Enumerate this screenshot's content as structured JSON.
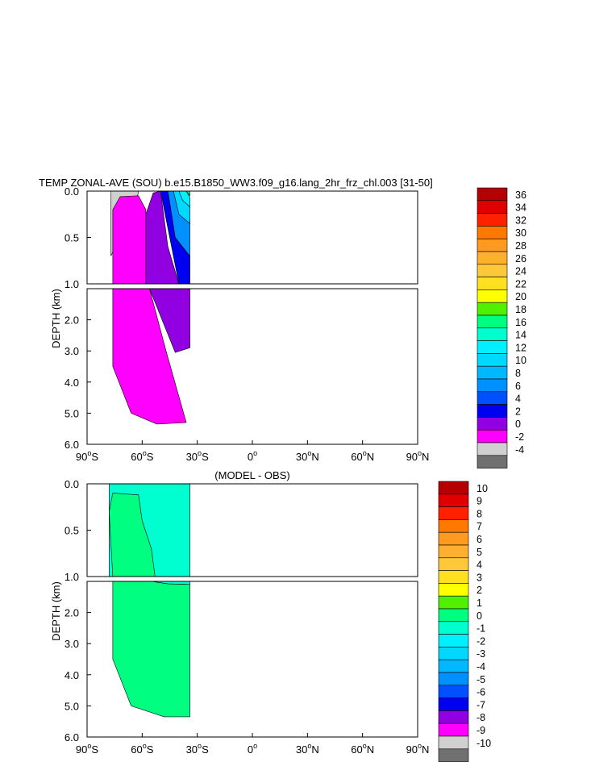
{
  "chart_data": [
    {
      "type": "filled-contour",
      "title": "TEMP ZONAL-AVE (SOU) b.e15.B1850_WW3.f09_g16.lang_2hr_frz_chl.003 [31-50]",
      "ylabel": "DEPTH (km)",
      "xlim": [
        -90,
        90
      ],
      "ylim_top_panel": [
        0.0,
        1.0
      ],
      "ylim_bottom_panel": [
        1.0,
        6.0
      ],
      "y_ticks_top": [
        "0.0",
        "0.5",
        "1.0"
      ],
      "y_ticks_bottom": [
        "2.0",
        "3.0",
        "4.0",
        "5.0",
        "6.0"
      ],
      "x_ticks": [
        {
          "deg": "90",
          "hemi": "S"
        },
        {
          "deg": "60",
          "hemi": "S"
        },
        {
          "deg": "30",
          "hemi": "S"
        },
        {
          "deg": "0",
          "hemi": ""
        },
        {
          "deg": "30",
          "hemi": "N"
        },
        {
          "deg": "60",
          "hemi": "N"
        },
        {
          "deg": "90",
          "hemi": "N"
        }
      ],
      "colorbar": {
        "labels": [
          "36",
          "34",
          "32",
          "30",
          "28",
          "26",
          "24",
          "22",
          "20",
          "18",
          "16",
          "14",
          "12",
          "10",
          "8",
          "6",
          "4",
          "2",
          "0",
          "-2",
          "-4"
        ],
        "colors": [
          "#b40000",
          "#e00000",
          "#ff2000",
          "#ff7800",
          "#ff9a20",
          "#ffb030",
          "#ffc838",
          "#ffe020",
          "#ffff00",
          "#50f000",
          "#00ff80",
          "#00ffd0",
          "#00f0ff",
          "#00d8ff",
          "#00b8ff",
          "#0090ff",
          "#0050ff",
          "#0000f0",
          "#9000e0",
          "#ff00ff",
          "#d0d0d0",
          "#707070"
        ]
      },
      "fields": [
        {
          "value": -1,
          "color": "#d0d0d0",
          "top": [
            [
              -77,
              0
            ],
            [
              -62,
              0
            ],
            [
              -63,
              0.1
            ],
            [
              -77,
              0.7
            ]
          ],
          "bottom": []
        },
        {
          "value": 1,
          "color": "#ff00ff",
          "top": [
            [
              -76,
              1.0
            ],
            [
              -76,
              0.2
            ],
            [
              -72,
              0.06
            ],
            [
              -62,
              0.05
            ],
            [
              -58,
              0.2
            ],
            [
              -58,
              1.0
            ]
          ],
          "bottom": [
            [
              -76,
              1.0
            ],
            [
              -56,
              1.0
            ],
            [
              -47,
              3.0
            ],
            [
              -36,
              5.3
            ],
            [
              -52,
              5.35
            ],
            [
              -66,
              5.0
            ],
            [
              -76,
              3.5
            ]
          ]
        },
        {
          "value": 3,
          "color": "#9000e0",
          "top": [
            [
              -58,
              1.0
            ],
            [
              -58,
              0.25
            ],
            [
              -54,
              0.02
            ],
            [
              -50,
              0.0
            ],
            [
              -46,
              0.6
            ],
            [
              -40,
              1.0
            ]
          ],
          "bottom": [
            [
              -56,
              1.0
            ],
            [
              -34,
              1.0
            ],
            [
              -34,
              2.9
            ],
            [
              -42,
              3.05
            ]
          ]
        },
        {
          "value": 5,
          "color": "#0000f0",
          "top": [
            [
              -50,
              0
            ],
            [
              -46,
              0
            ],
            [
              -42,
              0.5
            ],
            [
              -34,
              0.7
            ],
            [
              -34,
              1.0
            ],
            [
              -40,
              1.0
            ]
          ],
          "bottom": []
        },
        {
          "value": 7,
          "color": "#0090ff",
          "top": [
            [
              -46,
              0
            ],
            [
              -40,
              0
            ],
            [
              -34,
              0.3
            ],
            [
              -34,
              0.7
            ],
            [
              -42,
              0.5
            ]
          ],
          "bottom": []
        },
        {
          "value": 9,
          "color": "#00d8ff",
          "top": [
            [
              -43,
              0
            ],
            [
              -38,
              0
            ],
            [
              -34,
              0.15
            ],
            [
              -34,
              0.35
            ],
            [
              -40,
              0.25
            ]
          ],
          "bottom": []
        },
        {
          "value": 11,
          "color": "#00f0ff",
          "top": [
            [
              -40,
              0
            ],
            [
              -36,
              0
            ],
            [
              -34,
              0.07
            ],
            [
              -34,
              0.17
            ],
            [
              -38,
              0.1
            ]
          ],
          "bottom": []
        },
        {
          "value": 17,
          "color": "#00ff80",
          "top": [
            [
              -36,
              0
            ],
            [
              -34,
              0
            ],
            [
              -34,
              0.05
            ]
          ],
          "bottom": []
        }
      ]
    },
    {
      "type": "filled-contour",
      "title": "(MODEL - OBS)",
      "ylabel": "DEPTH (km)",
      "xlim": [
        -90,
        90
      ],
      "ylim_top_panel": [
        0.0,
        1.0
      ],
      "ylim_bottom_panel": [
        1.0,
        6.0
      ],
      "y_ticks_top": [
        "0.0",
        "0.5",
        "1.0"
      ],
      "y_ticks_bottom": [
        "2.0",
        "3.0",
        "4.0",
        "5.0",
        "6.0"
      ],
      "x_ticks": [
        {
          "deg": "90",
          "hemi": "S"
        },
        {
          "deg": "60",
          "hemi": "S"
        },
        {
          "deg": "30",
          "hemi": "S"
        },
        {
          "deg": "0",
          "hemi": ""
        },
        {
          "deg": "30",
          "hemi": "N"
        },
        {
          "deg": "60",
          "hemi": "N"
        },
        {
          "deg": "90",
          "hemi": "N"
        }
      ],
      "colorbar": {
        "labels": [
          "10",
          "9",
          "8",
          "7",
          "6",
          "5",
          "4",
          "3",
          "2",
          "1",
          "0",
          "-1",
          "-2",
          "-3",
          "-4",
          "-5",
          "-6",
          "-7",
          "-8",
          "-9",
          "-10"
        ],
        "colors": [
          "#b40000",
          "#e00000",
          "#ff2000",
          "#ff7800",
          "#ff9a20",
          "#ffb030",
          "#ffc838",
          "#ffe020",
          "#ffff00",
          "#50f000",
          "#00ff80",
          "#00ffd0",
          "#00f0ff",
          "#00d8ff",
          "#00b8ff",
          "#0090ff",
          "#0050ff",
          "#0000f0",
          "#9000e0",
          "#ff00ff",
          "#d0d0d0",
          "#707070"
        ]
      },
      "fields": [
        {
          "value": -0.5,
          "color": "#00ffd0",
          "top": [
            [
              -78,
              0
            ],
            [
              -34,
              0
            ],
            [
              -34,
              1.0
            ],
            [
              -78,
              1.0
            ]
          ],
          "bottom": [
            [
              -55,
              1.0
            ],
            [
              -34,
              1.0
            ],
            [
              -34,
              1.1
            ],
            [
              -46,
              1.08
            ]
          ]
        },
        {
          "value": 0.5,
          "color": "#00ff80",
          "top": [
            [
              -76,
              1.0
            ],
            [
              -78,
              0.3
            ],
            [
              -76,
              0.1
            ],
            [
              -62,
              0.12
            ],
            [
              -60,
              0.4
            ],
            [
              -55,
              0.7
            ],
            [
              -53,
              1.0
            ]
          ],
          "bottom": [
            [
              -76,
              1.0
            ],
            [
              -55,
              1.0
            ],
            [
              -46,
              1.08
            ],
            [
              -34,
              1.1
            ],
            [
              -34,
              5.35
            ],
            [
              -48,
              5.35
            ],
            [
              -66,
              5.0
            ],
            [
              -76,
              3.5
            ]
          ]
        }
      ]
    }
  ]
}
